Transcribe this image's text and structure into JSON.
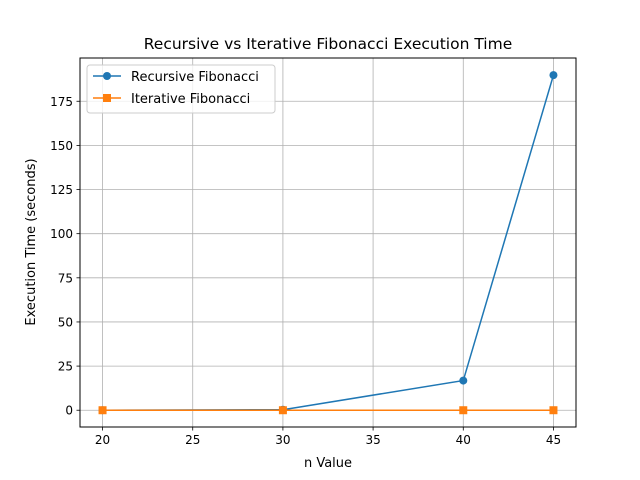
{
  "chart_data": {
    "type": "line",
    "title": "Recursive vs Iterative Fibonacci Execution Time",
    "xlabel": "n Value",
    "ylabel": "Execution Time (seconds)",
    "x": [
      20,
      30,
      40,
      45
    ],
    "xlim": [
      18.75,
      46.25
    ],
    "ylim": [
      -9.5,
      199.5
    ],
    "xticks": [
      20,
      25,
      30,
      35,
      40,
      45
    ],
    "yticks": [
      0,
      25,
      50,
      75,
      100,
      125,
      150,
      175
    ],
    "grid": true,
    "legend": "top-left",
    "series": [
      {
        "name": "Recursive Fibonacci",
        "marker": "circle",
        "color": "#1f77b4",
        "values": [
          0.003,
          0.3,
          16.8,
          189.8
        ]
      },
      {
        "name": "Iterative Fibonacci",
        "marker": "square",
        "color": "#ff7f0e",
        "values": [
          0.0,
          0.0,
          0.0,
          0.0
        ]
      }
    ]
  }
}
